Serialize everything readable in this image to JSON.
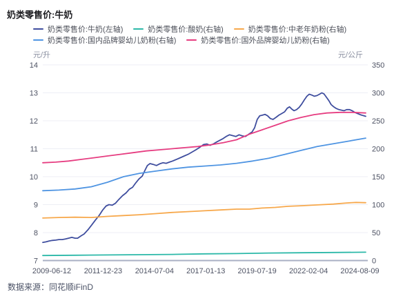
{
  "title": "奶类零售价:牛奶",
  "footer": {
    "source_label": "数据来源：同花顺iFinD"
  },
  "colors": {
    "grid": "#edeef5",
    "axis_line": "#a9afc3",
    "tick_text": "#4d5263",
    "series_milk": "#3e4d9e",
    "series_yogurt": "#2bb8a8",
    "series_middle_aged_powder": "#f7a84b",
    "series_domestic_formula": "#4e94e2",
    "series_foreign_formula": "#e63c80"
  },
  "chart_data": {
    "type": "line",
    "title": "奶类零售价:牛奶",
    "grid": true,
    "legend_position": "top-left",
    "left_axis": {
      "unit": "元/升",
      "min": 7,
      "max": 14,
      "ticks": [
        14,
        13,
        12,
        11,
        10,
        9,
        8,
        7
      ]
    },
    "right_axis": {
      "unit": "元/公斤",
      "min": 0,
      "max": 350,
      "ticks": [
        350,
        300,
        250,
        200,
        150,
        100,
        50,
        0
      ]
    },
    "x_ticks": [
      "2009-06-12",
      "2011-12-23",
      "2014-07-04",
      "2017-01-13",
      "2019-07-19",
      "2022-02-04",
      "2024-08-09"
    ],
    "x_range": [
      "2009-06-12",
      "2024-08-09"
    ],
    "legend_rows": [
      [
        0,
        1,
        2
      ],
      [
        3,
        4
      ]
    ],
    "series": [
      {
        "key": "milk",
        "name": "奶类零售价:牛奶(左轴)",
        "axis": "left",
        "color": "#3e4d9e",
        "points": [
          [
            0.0,
            7.65
          ],
          [
            0.01,
            7.67
          ],
          [
            0.02,
            7.7
          ],
          [
            0.03,
            7.72
          ],
          [
            0.04,
            7.73
          ],
          [
            0.05,
            7.75
          ],
          [
            0.06,
            7.75
          ],
          [
            0.07,
            7.77
          ],
          [
            0.08,
            7.8
          ],
          [
            0.09,
            7.83
          ],
          [
            0.1,
            7.8
          ],
          [
            0.108,
            7.8
          ],
          [
            0.118,
            7.88
          ],
          [
            0.128,
            7.95
          ],
          [
            0.14,
            8.1
          ],
          [
            0.152,
            8.28
          ],
          [
            0.163,
            8.45
          ],
          [
            0.175,
            8.62
          ],
          [
            0.185,
            8.8
          ],
          [
            0.196,
            8.95
          ],
          [
            0.205,
            9.0
          ],
          [
            0.215,
            8.98
          ],
          [
            0.225,
            9.05
          ],
          [
            0.235,
            9.18
          ],
          [
            0.247,
            9.32
          ],
          [
            0.258,
            9.42
          ],
          [
            0.268,
            9.55
          ],
          [
            0.278,
            9.62
          ],
          [
            0.288,
            9.78
          ],
          [
            0.298,
            9.92
          ],
          [
            0.308,
            10.02
          ],
          [
            0.316,
            10.22
          ],
          [
            0.324,
            10.4
          ],
          [
            0.332,
            10.47
          ],
          [
            0.342,
            10.44
          ],
          [
            0.352,
            10.4
          ],
          [
            0.362,
            10.46
          ],
          [
            0.372,
            10.5
          ],
          [
            0.382,
            10.48
          ],
          [
            0.392,
            10.52
          ],
          [
            0.402,
            10.56
          ],
          [
            0.414,
            10.62
          ],
          [
            0.426,
            10.68
          ],
          [
            0.438,
            10.74
          ],
          [
            0.45,
            10.8
          ],
          [
            0.462,
            10.88
          ],
          [
            0.474,
            10.96
          ],
          [
            0.486,
            11.05
          ],
          [
            0.498,
            11.15
          ],
          [
            0.508,
            11.17
          ],
          [
            0.518,
            11.12
          ],
          [
            0.528,
            11.17
          ],
          [
            0.538,
            11.24
          ],
          [
            0.548,
            11.3
          ],
          [
            0.558,
            11.36
          ],
          [
            0.568,
            11.44
          ],
          [
            0.578,
            11.5
          ],
          [
            0.588,
            11.47
          ],
          [
            0.598,
            11.44
          ],
          [
            0.608,
            11.5
          ],
          [
            0.618,
            11.46
          ],
          [
            0.628,
            11.44
          ],
          [
            0.638,
            11.52
          ],
          [
            0.648,
            11.6
          ],
          [
            0.656,
            11.75
          ],
          [
            0.664,
            12.05
          ],
          [
            0.672,
            12.18
          ],
          [
            0.68,
            12.2
          ],
          [
            0.688,
            12.23
          ],
          [
            0.696,
            12.18
          ],
          [
            0.705,
            12.08
          ],
          [
            0.713,
            12.05
          ],
          [
            0.722,
            12.12
          ],
          [
            0.731,
            12.2
          ],
          [
            0.74,
            12.26
          ],
          [
            0.749,
            12.32
          ],
          [
            0.757,
            12.45
          ],
          [
            0.764,
            12.5
          ],
          [
            0.771,
            12.42
          ],
          [
            0.778,
            12.36
          ],
          [
            0.786,
            12.4
          ],
          [
            0.794,
            12.48
          ],
          [
            0.802,
            12.6
          ],
          [
            0.81,
            12.75
          ],
          [
            0.818,
            12.88
          ],
          [
            0.825,
            12.95
          ],
          [
            0.833,
            12.92
          ],
          [
            0.841,
            12.88
          ],
          [
            0.849,
            12.9
          ],
          [
            0.857,
            12.95
          ],
          [
            0.864,
            13.0
          ],
          [
            0.871,
            12.96
          ],
          [
            0.878,
            12.85
          ],
          [
            0.886,
            12.72
          ],
          [
            0.893,
            12.58
          ],
          [
            0.901,
            12.5
          ],
          [
            0.909,
            12.44
          ],
          [
            0.917,
            12.4
          ],
          [
            0.925,
            12.38
          ],
          [
            0.933,
            12.36
          ],
          [
            0.941,
            12.4
          ],
          [
            0.95,
            12.4
          ],
          [
            0.958,
            12.36
          ],
          [
            0.966,
            12.3
          ],
          [
            0.975,
            12.26
          ],
          [
            0.983,
            12.22
          ],
          [
            0.991,
            12.19
          ],
          [
            1.0,
            12.16
          ]
        ]
      },
      {
        "key": "yogurt",
        "name": "奶类零售价:酸奶(右轴)",
        "axis": "right",
        "color": "#2bb8a8",
        "points": [
          [
            0.0,
            9
          ],
          [
            0.1,
            9.5
          ],
          [
            0.2,
            10
          ],
          [
            0.3,
            10.5
          ],
          [
            0.4,
            11
          ],
          [
            0.5,
            12
          ],
          [
            0.6,
            12.5
          ],
          [
            0.7,
            13.5
          ],
          [
            0.8,
            14
          ],
          [
            0.9,
            14.5
          ],
          [
            1.0,
            15
          ]
        ]
      },
      {
        "key": "middle-aged-milk-powder",
        "name": "奶类零售价:中老年奶粉(右轴)",
        "axis": "right",
        "color": "#f7a84b",
        "points": [
          [
            0.0,
            76
          ],
          [
            0.05,
            77
          ],
          [
            0.1,
            77.5
          ],
          [
            0.15,
            77
          ],
          [
            0.2,
            79
          ],
          [
            0.25,
            80.5
          ],
          [
            0.3,
            82
          ],
          [
            0.35,
            84
          ],
          [
            0.4,
            86
          ],
          [
            0.45,
            87.5
          ],
          [
            0.5,
            89
          ],
          [
            0.55,
            90.5
          ],
          [
            0.6,
            92
          ],
          [
            0.64,
            92
          ],
          [
            0.68,
            94
          ],
          [
            0.72,
            95
          ],
          [
            0.76,
            97
          ],
          [
            0.8,
            98
          ],
          [
            0.85,
            99.5
          ],
          [
            0.9,
            101
          ],
          [
            0.94,
            103
          ],
          [
            0.97,
            104
          ],
          [
            1.0,
            103.5
          ]
        ]
      },
      {
        "key": "domestic-infant-formula",
        "name": "奶类零售价:国内品牌婴幼儿奶粉(右轴)",
        "axis": "right",
        "color": "#4e94e2",
        "points": [
          [
            0.0,
            125
          ],
          [
            0.05,
            126
          ],
          [
            0.1,
            128
          ],
          [
            0.15,
            132
          ],
          [
            0.2,
            140
          ],
          [
            0.25,
            150
          ],
          [
            0.3,
            156
          ],
          [
            0.35,
            160
          ],
          [
            0.4,
            164
          ],
          [
            0.45,
            167
          ],
          [
            0.5,
            169
          ],
          [
            0.55,
            171
          ],
          [
            0.6,
            174
          ],
          [
            0.65,
            178
          ],
          [
            0.7,
            183
          ],
          [
            0.75,
            190
          ],
          [
            0.8,
            197
          ],
          [
            0.85,
            204
          ],
          [
            0.9,
            209
          ],
          [
            0.95,
            214
          ],
          [
            1.0,
            219
          ]
        ]
      },
      {
        "key": "foreign-infant-formula",
        "name": "奶类零售价:国外品牌婴幼儿奶粉(右轴)",
        "axis": "right",
        "color": "#e63c80",
        "points": [
          [
            0.0,
            175
          ],
          [
            0.04,
            176
          ],
          [
            0.08,
            178
          ],
          [
            0.12,
            181
          ],
          [
            0.16,
            184
          ],
          [
            0.2,
            187
          ],
          [
            0.24,
            190
          ],
          [
            0.28,
            193
          ],
          [
            0.32,
            196
          ],
          [
            0.36,
            198
          ],
          [
            0.4,
            200
          ],
          [
            0.44,
            202
          ],
          [
            0.48,
            204
          ],
          [
            0.52,
            207
          ],
          [
            0.56,
            211
          ],
          [
            0.6,
            216
          ],
          [
            0.64,
            226
          ],
          [
            0.68,
            234
          ],
          [
            0.72,
            242
          ],
          [
            0.76,
            250
          ],
          [
            0.8,
            256
          ],
          [
            0.84,
            261
          ],
          [
            0.88,
            264
          ],
          [
            0.92,
            265
          ],
          [
            0.96,
            265
          ],
          [
            1.0,
            264
          ]
        ]
      }
    ]
  }
}
